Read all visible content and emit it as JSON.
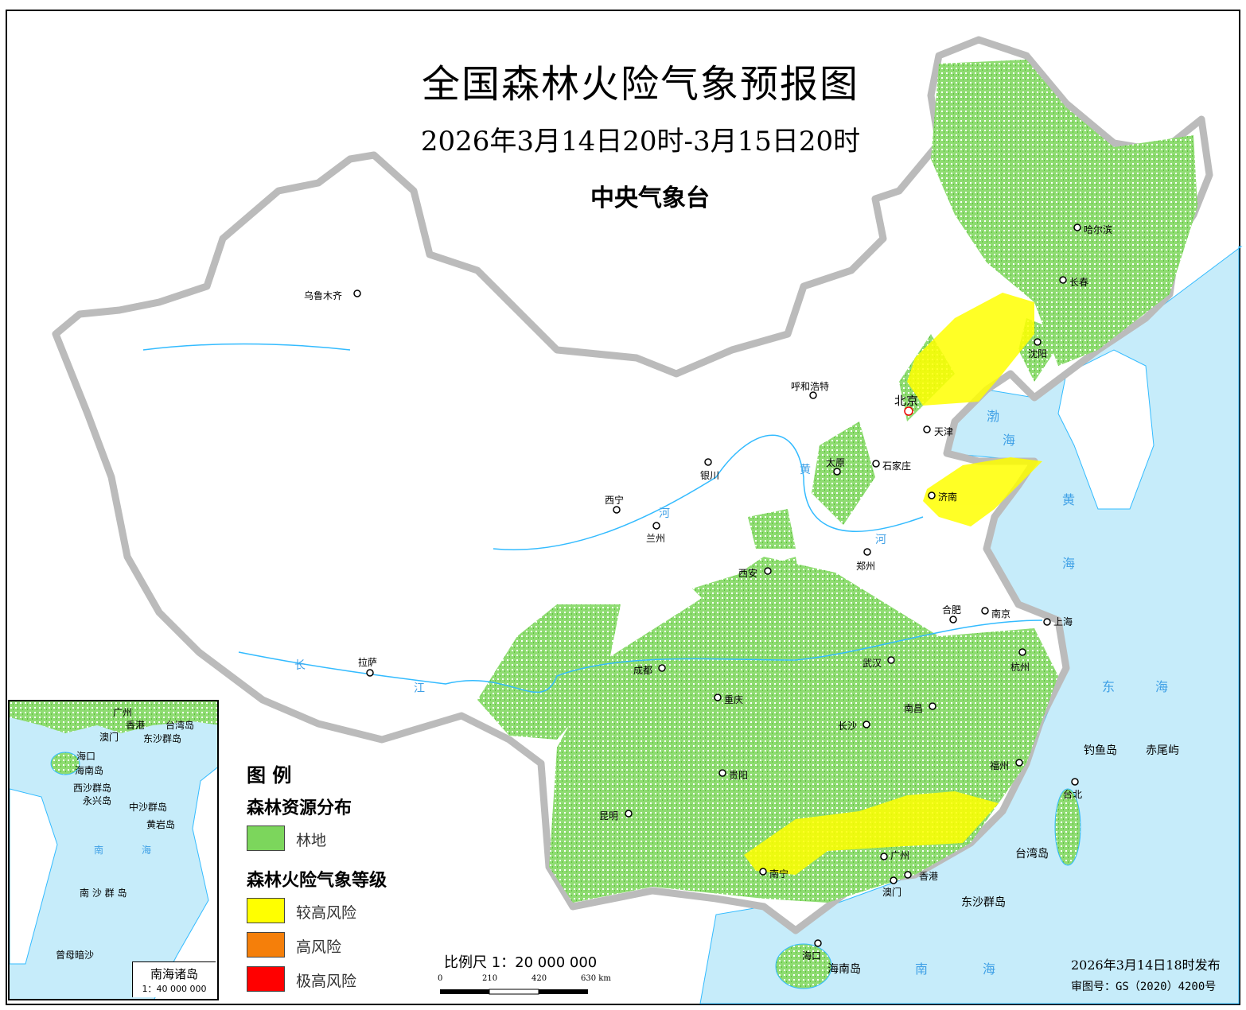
{
  "title": "全国森林火险气象预报图",
  "subtitle": "2026年3月14日20时-3月15日20时",
  "issuer": "中央气象台",
  "colors": {
    "forest": "#7cd65c",
    "risk_high_moderate": "#ffff00",
    "risk_high": "#f57f0a",
    "risk_extreme": "#ff0000",
    "sea": "#c6ecfa",
    "border": "#b8b8b8",
    "river": "#33bbff"
  },
  "cities": [
    "乌鲁木齐",
    "呼和浩特",
    "北京",
    "天津",
    "哈尔滨",
    "长春",
    "沈阳",
    "石家庄",
    "太原",
    "银川",
    "西宁",
    "兰州",
    "济南",
    "郑州",
    "西安",
    "合肥",
    "南京",
    "上海",
    "武汉",
    "杭州",
    "成都",
    "拉萨",
    "重庆",
    "南昌",
    "长沙",
    "福州",
    "贵阳",
    "昆明",
    "台北",
    "广州",
    "南宁",
    "香港",
    "澳门",
    "海口"
  ],
  "places": {
    "diaoyu": "钓鱼岛",
    "chiwei": "赤尾屿",
    "taiwan": "台湾岛",
    "dongsha": "东沙群岛",
    "hainan": "海南岛"
  },
  "seas": {
    "bo1": "渤",
    "bo2": "海",
    "huang1": "黄",
    "huang2": "海",
    "dong1": "东",
    "dong2": "海",
    "nan1": "南",
    "nan2": "海"
  },
  "rivers": {
    "yellow1": "黄",
    "yellow2": "河",
    "yellow3": "河",
    "yangtze1": "长",
    "yangtze2": "江"
  },
  "legend": {
    "title": "图  例",
    "forest_heading": "森林资源分布",
    "forest_label": "林地",
    "risk_heading": "森林火险气象等级",
    "levels": [
      "较高风险",
      "高风险",
      "极高风险"
    ]
  },
  "inset": {
    "labels": [
      "广州",
      "香港",
      "澳门",
      "台湾岛",
      "东沙群岛",
      "海口",
      "海南岛",
      "西沙群岛",
      "永兴岛",
      "中沙群岛",
      "黄岩岛",
      "南",
      "海",
      "南 沙 群 岛",
      "曾母暗沙"
    ],
    "title": "南海诸岛",
    "scale": "1：40 000 000"
  },
  "scale": {
    "label": "比例尺 1：20 000 000",
    "ticks": [
      "0",
      "210",
      "420",
      "630 km"
    ]
  },
  "issue_time": "2026年3月14日18时发布",
  "review_no": "审图号：GS（2020）4200号"
}
